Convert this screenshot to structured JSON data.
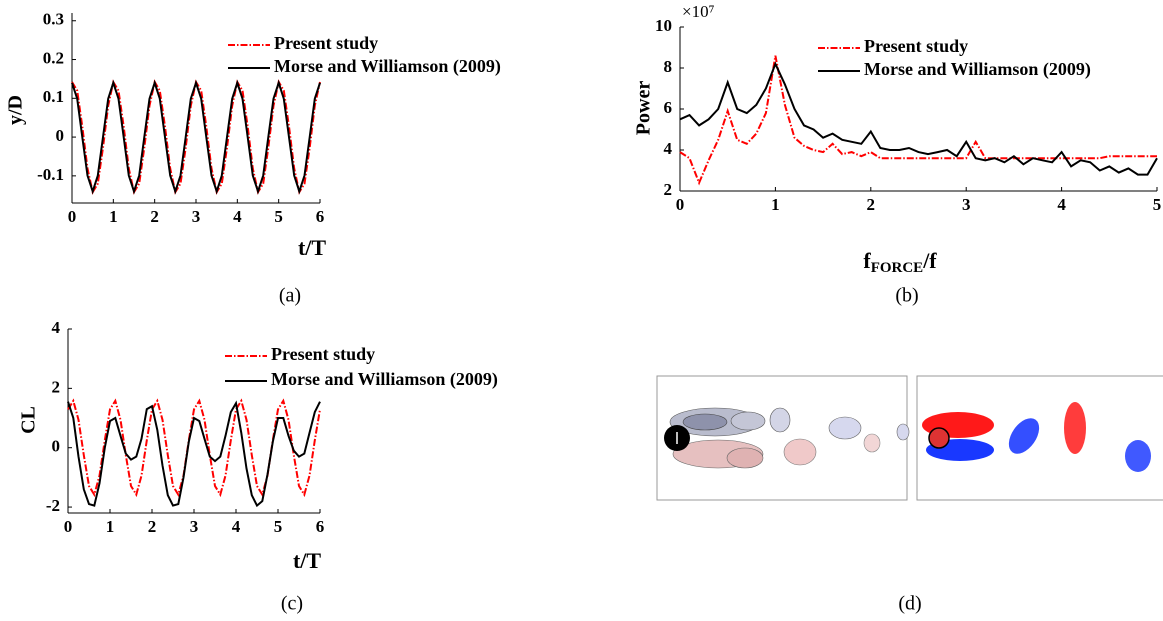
{
  "chart_data": [
    {
      "type": "line",
      "x_label": "t/T",
      "y_label": "y/D",
      "caption": "(a)",
      "x": [
        0,
        0.125,
        0.25,
        0.375,
        0.5,
        0.625,
        0.75,
        0.875,
        1,
        1.125,
        1.25,
        1.375,
        1.5,
        1.625,
        1.75,
        1.875,
        2,
        2.125,
        2.25,
        2.375,
        2.5,
        2.625,
        2.75,
        2.875,
        3,
        3.125,
        3.25,
        3.375,
        3.5,
        3.625,
        3.75,
        3.875,
        4,
        4.125,
        4.25,
        4.375,
        4.5,
        4.625,
        4.75,
        4.875,
        5,
        5.125,
        5.25,
        5.375,
        5.5,
        5.625,
        5.75,
        5.875,
        6
      ],
      "xlim": [
        0,
        6
      ],
      "xticks": [
        0,
        1,
        2,
        3,
        4,
        5,
        6
      ],
      "ylim": [
        -0.17,
        0.32
      ],
      "yticks": [
        -0.1,
        0,
        0.1,
        0.2,
        0.3
      ],
      "series": [
        {
          "name": "Present study",
          "color": "#ff0000",
          "dash": "dashdot",
          "values": [
            0.142,
            0.12,
            0.027,
            -0.081,
            -0.142,
            -0.12,
            -0.027,
            0.081,
            0.142,
            0.12,
            0.027,
            -0.081,
            -0.142,
            -0.12,
            -0.027,
            0.081,
            0.142,
            0.12,
            0.027,
            -0.081,
            -0.142,
            -0.12,
            -0.027,
            0.081,
            0.142,
            0.12,
            0.027,
            -0.081,
            -0.142,
            -0.12,
            -0.027,
            0.081,
            0.142,
            0.12,
            0.027,
            -0.081,
            -0.142,
            -0.12,
            -0.027,
            0.081,
            0.142,
            0.12,
            0.027,
            -0.081,
            -0.142,
            -0.12,
            -0.027,
            0.081,
            0.142
          ]
        },
        {
          "name": "Morse and Williamson (2009)",
          "color": "#000000",
          "dash": "solid",
          "values": [
            0.14,
            0.099,
            0,
            -0.099,
            -0.14,
            -0.099,
            0,
            0.099,
            0.14,
            0.099,
            0,
            -0.099,
            -0.14,
            -0.099,
            0,
            0.099,
            0.14,
            0.099,
            0,
            -0.099,
            -0.14,
            -0.099,
            0,
            0.099,
            0.14,
            0.099,
            0,
            -0.099,
            -0.14,
            -0.099,
            0,
            0.099,
            0.14,
            0.099,
            0,
            -0.099,
            -0.14,
            -0.099,
            0,
            0.099,
            0.14,
            0.099,
            0,
            -0.099,
            -0.14,
            -0.099,
            0,
            0.099,
            0.14
          ]
        }
      ]
    },
    {
      "type": "line",
      "x_label": "f",
      "x_label_sub": "FORCE",
      "x_label_end": "/f",
      "y_label": "Power",
      "y_scale_label": "×10⁷",
      "caption": "(b)",
      "x": [
        0,
        0.1,
        0.2,
        0.3,
        0.4,
        0.5,
        0.6,
        0.7,
        0.8,
        0.9,
        1,
        1.1,
        1.2,
        1.3,
        1.4,
        1.5,
        1.6,
        1.7,
        1.8,
        1.9,
        2,
        2.1,
        2.2,
        2.3,
        2.4,
        2.5,
        2.6,
        2.7,
        2.8,
        2.9,
        3,
        3.1,
        3.2,
        3.3,
        3.4,
        3.5,
        3.6,
        3.7,
        3.8,
        3.9,
        4,
        4.1,
        4.2,
        4.3,
        4.4,
        4.5,
        4.6,
        4.7,
        4.8,
        4.9,
        5
      ],
      "xlim": [
        0,
        5
      ],
      "xticks": [
        0,
        1,
        2,
        3,
        4,
        5
      ],
      "ylim": [
        2,
        10
      ],
      "yticks": [
        2,
        4,
        6,
        8,
        10
      ],
      "series": [
        {
          "name": "Present study",
          "color": "#ff0000",
          "dash": "dashdot",
          "values": [
            3.9,
            3.6,
            2.4,
            3.5,
            4.5,
            5.9,
            4.5,
            4.3,
            4.8,
            5.8,
            8.6,
            6.2,
            4.6,
            4.2,
            4.0,
            3.9,
            4.3,
            3.8,
            3.9,
            3.7,
            3.9,
            3.6,
            3.6,
            3.6,
            3.6,
            3.6,
            3.6,
            3.6,
            3.6,
            3.6,
            3.6,
            4.4,
            3.6,
            3.6,
            3.6,
            3.6,
            3.6,
            3.6,
            3.6,
            3.6,
            3.6,
            3.6,
            3.6,
            3.6,
            3.6,
            3.7,
            3.7,
            3.7,
            3.7,
            3.7,
            3.7
          ]
        },
        {
          "name": "Morse and Williamson (2009)",
          "color": "#000000",
          "dash": "solid",
          "values": [
            5.5,
            5.7,
            5.2,
            5.5,
            6.0,
            7.3,
            6.0,
            5.8,
            6.2,
            7.0,
            8.2,
            7.2,
            6.0,
            5.2,
            5.0,
            4.6,
            4.8,
            4.5,
            4.4,
            4.3,
            4.9,
            4.1,
            4.0,
            4.0,
            4.1,
            3.9,
            3.8,
            3.9,
            4.0,
            3.7,
            4.4,
            3.6,
            3.5,
            3.6,
            3.4,
            3.7,
            3.3,
            3.6,
            3.5,
            3.4,
            3.9,
            3.2,
            3.5,
            3.4,
            3.0,
            3.2,
            2.9,
            3.1,
            2.8,
            2.8,
            3.6
          ]
        }
      ]
    },
    {
      "type": "line",
      "x_label": "t/T",
      "y_label": "CL",
      "caption": "(c)",
      "x": [
        0,
        0.125,
        0.25,
        0.375,
        0.5,
        0.625,
        0.75,
        0.875,
        1,
        1.125,
        1.25,
        1.375,
        1.5,
        1.625,
        1.75,
        1.875,
        2,
        2.125,
        2.25,
        2.375,
        2.5,
        2.625,
        2.75,
        2.875,
        3,
        3.125,
        3.25,
        3.375,
        3.5,
        3.625,
        3.75,
        3.875,
        4,
        4.125,
        4.25,
        4.375,
        4.5,
        4.625,
        4.75,
        4.875,
        5,
        5.125,
        5.25,
        5.375,
        5.5,
        5.625,
        5.75,
        5.875,
        6
      ],
      "xlim": [
        0,
        6
      ],
      "xticks": [
        0,
        1,
        2,
        3,
        4,
        5,
        6
      ],
      "ylim": [
        -2.2,
        4
      ],
      "yticks": [
        -2,
        0,
        2,
        4
      ],
      "series": [
        {
          "name": "Present study",
          "color": "#ff0000",
          "dash": "dashdot",
          "values": [
            1.29,
            1.58,
            0.94,
            -0.25,
            -1.29,
            -1.58,
            -0.94,
            0.25,
            1.29,
            1.58,
            0.94,
            -0.25,
            -1.29,
            -1.58,
            -0.94,
            0.25,
            1.29,
            1.58,
            0.94,
            -0.25,
            -1.29,
            -1.58,
            -0.94,
            0.25,
            1.29,
            1.58,
            0.94,
            -0.25,
            -1.29,
            -1.58,
            -0.94,
            0.25,
            1.29,
            1.58,
            0.94,
            -0.25,
            -1.29,
            -1.58,
            -0.94,
            0.25,
            1.29,
            1.58,
            0.94,
            -0.25,
            -1.29,
            -1.58,
            -0.94,
            0.25,
            1.29
          ]
        },
        {
          "name": "Morse and Williamson (2009)",
          "color": "#000000",
          "dash": "solid",
          "values": [
            1.55,
            1.0,
            -0.3,
            -1.4,
            -1.9,
            -1.95,
            -1.2,
            0.0,
            0.9,
            1.0,
            0.4,
            -0.2,
            -0.4,
            -0.3,
            0.3,
            1.3,
            1.4,
            0.6,
            -0.6,
            -1.6,
            -1.95,
            -1.9,
            -1.0,
            0.2,
            1.0,
            0.9,
            0.3,
            -0.3,
            -0.45,
            -0.3,
            0.4,
            1.2,
            1.5,
            0.5,
            -0.7,
            -1.6,
            -1.95,
            -1.8,
            -0.9,
            0.2,
            1.0,
            1.0,
            0.4,
            -0.1,
            -0.3,
            -0.2,
            0.5,
            1.2,
            1.55
          ]
        }
      ]
    }
  ],
  "panel_d": {
    "caption": "(d)"
  }
}
